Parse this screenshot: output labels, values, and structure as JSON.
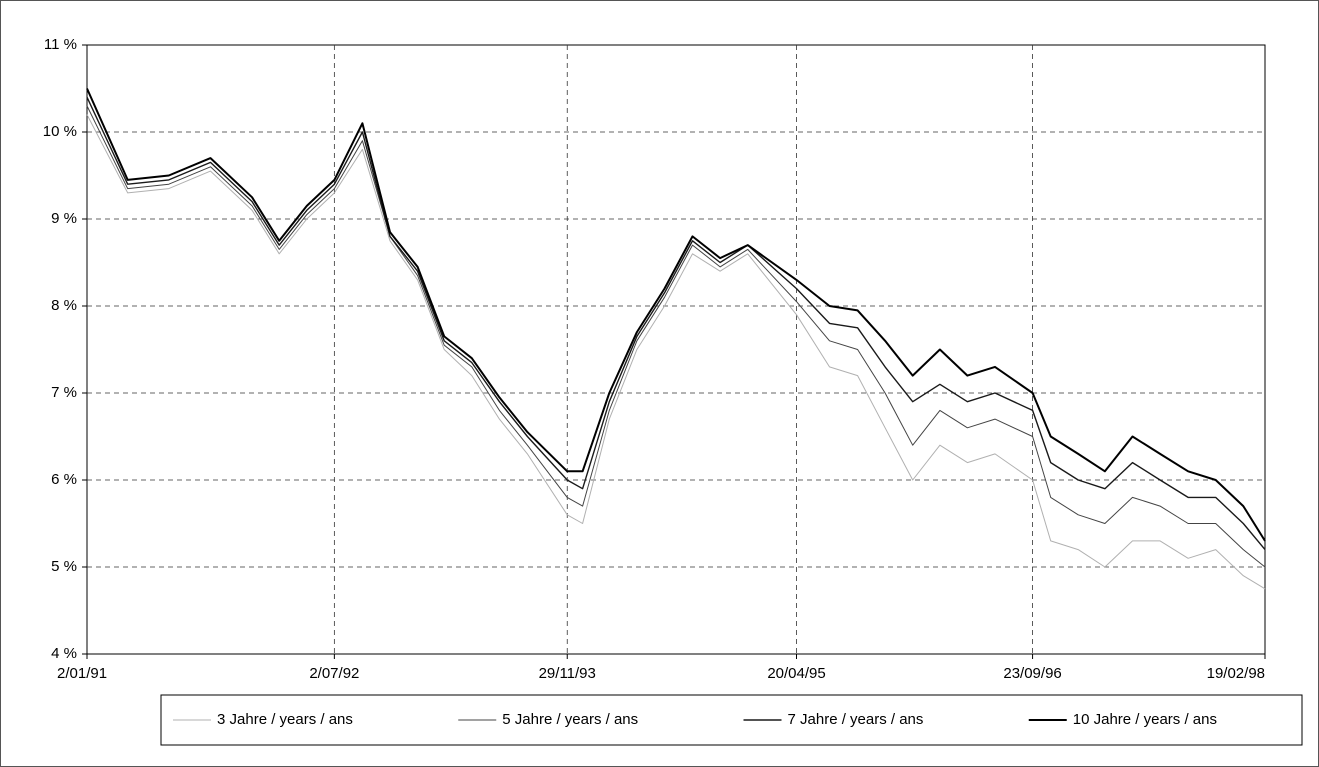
{
  "chart_data": {
    "type": "line",
    "x": [
      "2/01/91",
      "2/04/91",
      "2/07/91",
      "2/10/91",
      "2/01/92",
      "2/03/92",
      "2/05/92",
      "2/07/92",
      "2/09/92",
      "2/11/92",
      "2/01/93",
      "2/03/93",
      "2/05/93",
      "2/07/93",
      "2/09/93",
      "29/11/93",
      "2/01/94",
      "2/03/94",
      "2/05/94",
      "2/07/94",
      "2/09/94",
      "2/11/94",
      "2/01/95",
      "20/04/95",
      "2/07/95",
      "2/09/95",
      "2/11/95",
      "2/01/96",
      "2/03/96",
      "2/05/96",
      "2/07/96",
      "23/09/96",
      "2/11/96",
      "2/01/97",
      "2/03/97",
      "2/05/97",
      "2/07/97",
      "2/09/97",
      "2/11/97",
      "2/01/98",
      "19/02/98"
    ],
    "series": [
      {
        "name": "3 Jahre / years / ans",
        "color": "#b0b0b0",
        "values": [
          10.2,
          9.3,
          9.35,
          9.55,
          9.1,
          8.6,
          9.0,
          9.3,
          9.8,
          8.75,
          8.3,
          7.5,
          7.2,
          6.7,
          6.3,
          5.6,
          5.5,
          6.7,
          7.5,
          8.0,
          8.6,
          8.4,
          8.6,
          7.9,
          7.3,
          7.2,
          6.6,
          6.0,
          6.4,
          6.2,
          6.3,
          6.0,
          5.3,
          5.2,
          5.0,
          5.3,
          5.3,
          5.1,
          5.2,
          4.9,
          4.75
        ]
      },
      {
        "name": "5 Jahre / years / ans",
        "color": "#444444",
        "values": [
          10.3,
          9.35,
          9.4,
          9.6,
          9.15,
          8.65,
          9.05,
          9.35,
          9.9,
          8.8,
          8.35,
          7.55,
          7.3,
          6.8,
          6.4,
          5.8,
          5.7,
          6.8,
          7.6,
          8.1,
          8.7,
          8.45,
          8.65,
          8.05,
          7.6,
          7.5,
          7.0,
          6.4,
          6.8,
          6.6,
          6.7,
          6.5,
          5.8,
          5.6,
          5.5,
          5.8,
          5.7,
          5.5,
          5.5,
          5.2,
          5.0
        ]
      },
      {
        "name": "7 Jahre / years / ans",
        "color": "#1a1a1a",
        "values": [
          10.4,
          9.4,
          9.45,
          9.65,
          9.2,
          8.7,
          9.1,
          9.4,
          10.0,
          8.8,
          8.4,
          7.6,
          7.35,
          6.9,
          6.5,
          6.0,
          5.9,
          6.9,
          7.65,
          8.15,
          8.75,
          8.5,
          8.7,
          8.2,
          7.8,
          7.75,
          7.3,
          6.9,
          7.1,
          6.9,
          7.0,
          6.8,
          6.2,
          6.0,
          5.9,
          6.2,
          6.0,
          5.8,
          5.8,
          5.5,
          5.2
        ]
      },
      {
        "name": "10 Jahre / years / ans",
        "color": "#000000",
        "values": [
          10.5,
          9.45,
          9.5,
          9.7,
          9.25,
          8.75,
          9.15,
          9.45,
          10.1,
          8.85,
          8.45,
          7.65,
          7.4,
          6.95,
          6.55,
          6.1,
          6.1,
          7.0,
          7.7,
          8.2,
          8.8,
          8.55,
          8.7,
          8.3,
          8.0,
          7.95,
          7.6,
          7.2,
          7.5,
          7.2,
          7.3,
          7.0,
          6.5,
          6.3,
          6.1,
          6.5,
          6.3,
          6.1,
          6.0,
          5.7,
          5.3
        ]
      }
    ],
    "xticks": [
      "2/01/91",
      "2/07/92",
      "29/11/93",
      "20/04/95",
      "23/09/96",
      "19/02/98"
    ],
    "xlim": [
      "2/01/91",
      "19/02/98"
    ],
    "ylim": [
      4,
      11
    ],
    "yticks": [
      {
        "value": 4,
        "label": "4 %"
      },
      {
        "value": 5,
        "label": "5 %"
      },
      {
        "value": 6,
        "label": "6 %"
      },
      {
        "value": 7,
        "label": "7 %"
      },
      {
        "value": 8,
        "label": "8 %"
      },
      {
        "value": 9,
        "label": "9 %"
      },
      {
        "value": 10,
        "label": "10 %"
      },
      {
        "value": 11,
        "label": "11 %"
      }
    ],
    "grid": true,
    "legend": "bottom"
  }
}
